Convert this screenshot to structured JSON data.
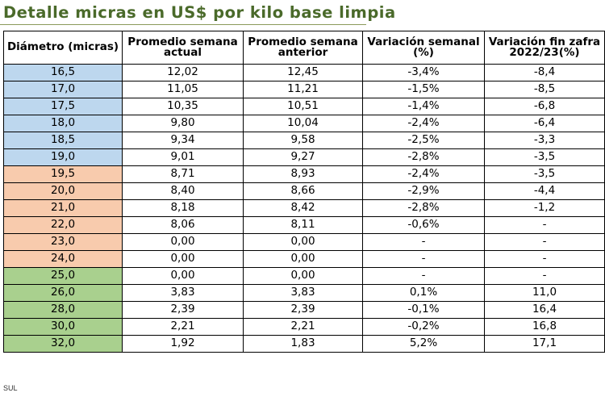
{
  "title": "Detalle micras en US$ por kilo base limpia",
  "source": "SUL",
  "colors": {
    "blue": "#bdd7ee",
    "orange": "#f8cbad",
    "green": "#a9d08e",
    "title": "#4a6a2a"
  },
  "table": {
    "headers": [
      {
        "line1": "Diámetro (micras)",
        "line2": ""
      },
      {
        "line1": "Promedio semana",
        "line2": "actual"
      },
      {
        "line1": "Promedio semana",
        "line2": "anterior"
      },
      {
        "line1": "Variación semanal",
        "line2": "(%)"
      },
      {
        "line1": "Variación fin zafra",
        "line2": "2022/23(%)"
      }
    ],
    "rows": [
      {
        "group": "blue",
        "cells": [
          "16,5",
          "12,02",
          "12,45",
          "-3,4%",
          "-8,4"
        ]
      },
      {
        "group": "blue",
        "cells": [
          "17,0",
          "11,05",
          "11,21",
          "-1,5%",
          "-8,5"
        ]
      },
      {
        "group": "blue",
        "cells": [
          "17,5",
          "10,35",
          "10,51",
          "-1,4%",
          "-6,8"
        ]
      },
      {
        "group": "blue",
        "cells": [
          "18,0",
          "9,80",
          "10,04",
          "-2,4%",
          "-6,4"
        ]
      },
      {
        "group": "blue",
        "cells": [
          "18,5",
          "9,34",
          "9,58",
          "-2,5%",
          "-3,3"
        ]
      },
      {
        "group": "blue",
        "cells": [
          "19,0",
          "9,01",
          "9,27",
          "-2,8%",
          "-3,5"
        ]
      },
      {
        "group": "orange",
        "cells": [
          "19,5",
          "8,71",
          "8,93",
          "-2,4%",
          "-3,5"
        ]
      },
      {
        "group": "orange",
        "cells": [
          "20,0",
          "8,40",
          "8,66",
          "-2,9%",
          "-4,4"
        ]
      },
      {
        "group": "orange",
        "cells": [
          "21,0",
          "8,18",
          "8,42",
          "-2,8%",
          "-1,2"
        ]
      },
      {
        "group": "orange",
        "cells": [
          "22,0",
          "8,06",
          "8,11",
          "-0,6%",
          "-"
        ]
      },
      {
        "group": "orange",
        "cells": [
          "23,0",
          "0,00",
          "0,00",
          "-",
          "-"
        ]
      },
      {
        "group": "orange",
        "cells": [
          "24,0",
          "0,00",
          "0,00",
          "-",
          "-"
        ]
      },
      {
        "group": "green",
        "cells": [
          "25,0",
          "0,00",
          "0,00",
          "-",
          "-"
        ]
      },
      {
        "group": "green",
        "cells": [
          "26,0",
          "3,83",
          "3,83",
          "0,1%",
          "11,0"
        ]
      },
      {
        "group": "green",
        "cells": [
          "28,0",
          "2,39",
          "2,39",
          "-0,1%",
          "16,4"
        ]
      },
      {
        "group": "green",
        "cells": [
          "30,0",
          "2,21",
          "2,21",
          "-0,2%",
          "16,8"
        ]
      },
      {
        "group": "green",
        "cells": [
          "32,0",
          "1,92",
          "1,83",
          "5,2%",
          "17,1"
        ]
      }
    ]
  }
}
